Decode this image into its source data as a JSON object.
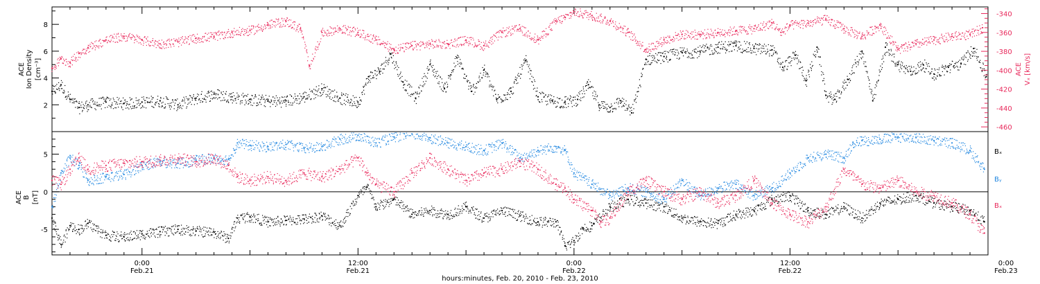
{
  "figure": {
    "xaxis_title": "hours:minutes, Feb. 20, 2010 - Feb. 23, 2010",
    "x_ticks": [
      {
        "time_label": "0:00",
        "date_label": "Feb.21"
      },
      {
        "time_label": "12:00",
        "date_label": "Feb.21"
      },
      {
        "time_label": "0:00",
        "date_label": "Feb.22"
      },
      {
        "time_label": "12:00",
        "date_label": "Feb.22"
      },
      {
        "time_label": "0:00",
        "date_label": "Feb.23"
      }
    ]
  },
  "colors": {
    "black": "#000000",
    "red": "#e8275a",
    "blue": "#1f86e0"
  },
  "chart_data": [
    {
      "type": "scatter",
      "title": "",
      "xlabel": "hours:minutes, Feb. 20, 2010 - Feb. 23, 2010",
      "x_unit": "hours since Feb. 20, 2010 0:00",
      "x_range": [
        19.0,
        71.0
      ],
      "left_axis": {
        "label_lines": [
          "ACE",
          "Ion Density"
        ],
        "unit": "[cm⁻³]",
        "ylim": [
          0,
          9.3
        ],
        "ticks": [
          2,
          4,
          6,
          8
        ],
        "tick_labels": [
          "2",
          "4",
          "6",
          "8"
        ]
      },
      "right_axis": {
        "label_lines": [
          "ACE",
          "Vₓ [km/s]"
        ],
        "ylim": [
          -465,
          -333
        ],
        "ticks": [
          -460,
          -440,
          -420,
          -400,
          -380,
          -360,
          -340
        ],
        "tick_labels": [
          "-460",
          "-440",
          "-420",
          "-400",
          "-380",
          "-360",
          "-340"
        ]
      },
      "series": [
        {
          "name": "Ion Density",
          "axis": "left",
          "color": "#000000",
          "x": [
            19.0,
            19.5,
            20.0,
            20.5,
            21.0,
            22.0,
            23.0,
            24.0,
            25.0,
            26.0,
            27.0,
            28.0,
            29.0,
            30.0,
            31.0,
            32.0,
            33.0,
            34.0,
            35.0,
            36.0,
            36.6,
            37.2,
            37.8,
            38.5,
            39.2,
            40.0,
            40.8,
            41.5,
            42.3,
            43.0,
            43.7,
            44.5,
            45.3,
            46.0,
            46.8,
            47.5,
            48.2,
            48.8,
            49.4,
            50.0,
            50.6,
            51.2,
            52.0,
            53.0,
            54.0,
            55.0,
            56.0,
            57.0,
            58.0,
            59.0,
            59.6,
            60.3,
            60.9,
            61.5,
            62.0,
            62.5,
            63.2,
            64.0,
            64.6,
            65.3,
            66.0,
            66.7,
            67.4,
            68.0,
            68.8,
            69.5,
            70.2,
            70.9
          ],
          "y": [
            3.0,
            3.5,
            2.4,
            1.8,
            2.0,
            2.2,
            2.1,
            2.2,
            2.3,
            2.0,
            2.5,
            2.8,
            2.6,
            2.4,
            2.3,
            2.3,
            2.6,
            3.2,
            2.5,
            2.2,
            4.1,
            4.5,
            5.8,
            3.7,
            2.5,
            5.0,
            3.2,
            5.5,
            3.0,
            4.6,
            2.4,
            3.0,
            5.3,
            2.6,
            2.3,
            2.2,
            2.4,
            3.5,
            2.0,
            1.8,
            2.3,
            1.4,
            5.4,
            5.6,
            5.9,
            6.0,
            6.3,
            6.4,
            6.2,
            6.1,
            4.8,
            5.7,
            3.8,
            6.3,
            2.7,
            2.4,
            3.9,
            6.0,
            2.3,
            6.3,
            5.0,
            4.5,
            5.0,
            4.3,
            4.8,
            5.1,
            6.2,
            4.1
          ]
        },
        {
          "name": "Vx",
          "axis": "right",
          "color": "#e8275a",
          "x": [
            19.0,
            19.5,
            20.0,
            20.5,
            21.0,
            22.0,
            23.0,
            24.0,
            25.0,
            26.0,
            27.0,
            28.0,
            29.0,
            30.0,
            31.0,
            32.0,
            32.8,
            33.3,
            34.0,
            35.0,
            36.0,
            37.0,
            38.0,
            39.0,
            40.0,
            41.0,
            42.0,
            43.0,
            44.0,
            45.0,
            46.0,
            47.0,
            47.5,
            48.0,
            49.0,
            50.0,
            51.0,
            52.0,
            53.0,
            54.0,
            55.0,
            56.0,
            57.0,
            58.0,
            59.0,
            59.5,
            60.0,
            61.0,
            62.0,
            63.0,
            64.0,
            65.0,
            66.0,
            67.0,
            68.0,
            69.0,
            70.0,
            70.7
          ],
          "y": [
            -398,
            -388,
            -392,
            -382,
            -376,
            -368,
            -364,
            -368,
            -372,
            -370,
            -366,
            -364,
            -360,
            -358,
            -352,
            -348,
            -356,
            -395,
            -360,
            -356,
            -360,
            -368,
            -378,
            -374,
            -372,
            -372,
            -368,
            -374,
            -360,
            -356,
            -368,
            -348,
            -344,
            -338,
            -342,
            -348,
            -360,
            -378,
            -368,
            -362,
            -362,
            -360,
            -358,
            -356,
            -350,
            -360,
            -352,
            -350,
            -346,
            -356,
            -364,
            -352,
            -378,
            -372,
            -368,
            -364,
            -362,
            -355
          ]
        }
      ]
    },
    {
      "type": "scatter",
      "title": "",
      "xlabel": "hours:minutes, Feb. 20, 2010 - Feb. 23, 2010",
      "x_unit": "hours since Feb. 20, 2010 0:00",
      "x_range": [
        19.0,
        71.0
      ],
      "left_axis": {
        "label_lines": [
          "ACE",
          "B",
          "[nT]"
        ],
        "ylim": [
          -8.4,
          8.0
        ],
        "ticks": [
          -5,
          0,
          5
        ],
        "tick_labels": [
          "-5",
          "0",
          "5"
        ]
      },
      "zero_line": true,
      "legend_position": "right",
      "series": [
        {
          "name": "Bₓ",
          "color": "#000000",
          "x": [
            19.0,
            19.5,
            20.0,
            20.5,
            21.0,
            22.0,
            23.0,
            24.0,
            25.0,
            26.0,
            27.0,
            28.0,
            28.8,
            29.3,
            30.0,
            31.0,
            32.0,
            33.0,
            34.0,
            35.0,
            36.0,
            36.5,
            37.0,
            38.0,
            39.0,
            40.0,
            41.0,
            42.0,
            43.0,
            44.0,
            45.0,
            46.0,
            47.0,
            47.5,
            48.0,
            48.5,
            49.0,
            50.0,
            51.0,
            52.0,
            53.0,
            54.0,
            55.0,
            56.0,
            57.0,
            58.0,
            59.0,
            60.0,
            61.0,
            62.0,
            63.0,
            64.0,
            65.0,
            66.0,
            67.0,
            68.0,
            69.0,
            70.0,
            70.8
          ],
          "y": [
            -3.5,
            -7.0,
            -4.5,
            -5.0,
            -4.2,
            -5.8,
            -6.0,
            -5.6,
            -5.3,
            -5.0,
            -5.2,
            -5.4,
            -6.2,
            -3.5,
            -3.3,
            -4.0,
            -3.8,
            -3.6,
            -3.2,
            -4.5,
            -0.5,
            0.6,
            -2.0,
            -1.0,
            -3.0,
            -2.5,
            -3.0,
            -2.0,
            -3.5,
            -2.5,
            -3.2,
            -4.0,
            -4.0,
            -7.2,
            -6.5,
            -4.8,
            -4.5,
            -2.0,
            -1.0,
            -1.5,
            -2.0,
            -3.5,
            -4.0,
            -4.2,
            -3.0,
            -2.5,
            -1.0,
            -0.5,
            -2.5,
            -3.0,
            -2.0,
            -3.5,
            -1.5,
            -1.0,
            -0.5,
            -1.5,
            -2.0,
            -2.5,
            -4.0
          ]
        },
        {
          "name": "Bᵧ",
          "color": "#1f86e0",
          "x": [
            19.0,
            19.5,
            20.0,
            20.5,
            21.0,
            22.0,
            23.0,
            24.0,
            25.0,
            26.0,
            27.0,
            28.0,
            28.8,
            29.3,
            30.0,
            31.0,
            32.0,
            33.0,
            34.0,
            35.0,
            36.0,
            37.0,
            38.0,
            39.0,
            40.0,
            41.0,
            42.0,
            43.0,
            44.0,
            45.0,
            46.0,
            47.0,
            47.5,
            48.0,
            49.0,
            50.0,
            51.0,
            52.0,
            53.0,
            54.0,
            55.0,
            56.0,
            57.0,
            58.0,
            59.0,
            60.0,
            61.0,
            62.0,
            63.0,
            63.5,
            64.0,
            65.0,
            66.0,
            67.0,
            68.0,
            69.0,
            70.0,
            70.8
          ],
          "y": [
            -2.0,
            2.5,
            4.5,
            3.5,
            1.5,
            2.0,
            2.3,
            3.5,
            4.0,
            3.8,
            4.2,
            4.5,
            4.3,
            6.5,
            6.2,
            6.0,
            6.3,
            5.8,
            6.0,
            7.0,
            7.5,
            6.5,
            7.3,
            7.7,
            7.2,
            6.5,
            6.0,
            5.5,
            6.5,
            4.5,
            5.5,
            6.0,
            5.5,
            2.5,
            1.0,
            -0.5,
            0.5,
            0.0,
            -1.0,
            1.5,
            -0.5,
            0.5,
            1.0,
            -0.5,
            0.5,
            2.5,
            4.5,
            5.0,
            4.5,
            6.5,
            6.8,
            7.0,
            7.3,
            7.2,
            6.8,
            6.5,
            5.5,
            3.0
          ]
        },
        {
          "name": "Bₓ",
          "color": "#e8275a",
          "x": [
            19.0,
            19.5,
            20.0,
            20.5,
            21.0,
            22.0,
            23.0,
            24.0,
            25.0,
            26.0,
            27.0,
            28.0,
            28.8,
            29.3,
            30.0,
            31.0,
            32.0,
            33.0,
            34.0,
            35.0,
            36.0,
            36.5,
            37.0,
            38.0,
            39.0,
            40.0,
            41.0,
            42.0,
            43.0,
            44.0,
            45.0,
            46.0,
            47.0,
            47.5,
            48.0,
            49.0,
            49.5,
            50.0,
            51.0,
            52.0,
            53.0,
            54.0,
            55.0,
            56.0,
            57.0,
            58.0,
            59.0,
            60.0,
            61.0,
            62.0,
            63.0,
            64.0,
            65.0,
            66.0,
            67.0,
            68.0,
            69.0,
            70.0,
            70.8
          ],
          "y": [
            1.5,
            1.0,
            3.0,
            4.5,
            3.0,
            3.5,
            3.8,
            4.0,
            4.2,
            4.5,
            4.0,
            4.5,
            3.5,
            2.0,
            1.5,
            2.0,
            1.5,
            2.5,
            2.0,
            3.0,
            4.5,
            2.5,
            1.0,
            0.0,
            2.5,
            4.5,
            3.0,
            1.5,
            2.5,
            3.0,
            4.0,
            3.0,
            1.0,
            0.5,
            -1.0,
            -2.5,
            -4.0,
            -3.5,
            0.0,
            1.5,
            0.0,
            -1.0,
            0.0,
            -1.5,
            -0.5,
            1.5,
            -1.5,
            -3.0,
            -4.0,
            -2.0,
            3.0,
            1.0,
            0.5,
            1.5,
            0.0,
            -0.5,
            -1.5,
            -3.0,
            -5.5
          ]
        }
      ]
    }
  ]
}
